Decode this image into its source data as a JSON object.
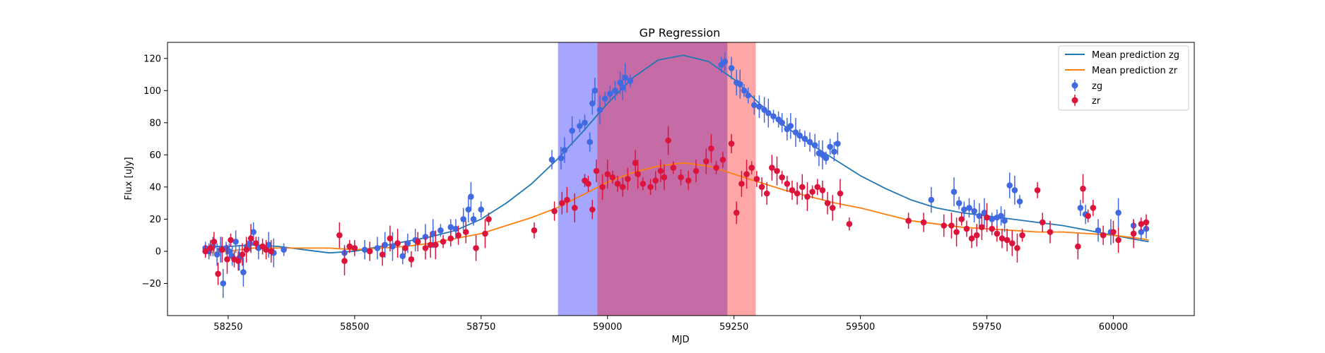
{
  "chart_data": {
    "type": "scatter",
    "title": "GP Regression",
    "xlabel": "MJD",
    "ylabel": "Flux [uJy]",
    "xlim": [
      58130,
      60160
    ],
    "ylim": [
      -40,
      130
    ],
    "xticks": [
      58250,
      58500,
      58750,
      59000,
      59250,
      59500,
      59750,
      60000
    ],
    "yticks": [
      -20,
      0,
      20,
      40,
      60,
      80,
      100,
      120
    ],
    "grid": false,
    "legend_position": "top-right",
    "shaded_regions": [
      {
        "x_start": 58902,
        "x_end": 59237,
        "color": "#0000ff",
        "opacity": 0.35
      },
      {
        "x_start": 58980,
        "x_end": 59293,
        "color": "#ff0000",
        "opacity": 0.35
      }
    ],
    "lines": [
      {
        "name": "Mean prediction zg",
        "color": "#1f77b4",
        "x": [
          58210,
          58250,
          58300,
          58350,
          58400,
          58450,
          58500,
          58550,
          58600,
          58650,
          58700,
          58750,
          58800,
          58850,
          58900,
          58950,
          59000,
          59050,
          59100,
          59150,
          59200,
          59250,
          59300,
          59350,
          59400,
          59450,
          59500,
          59550,
          59600,
          59650,
          59700,
          59750,
          59800,
          59850,
          59900,
          59950,
          60000,
          60050,
          60070
        ],
        "y": [
          3,
          3,
          4,
          3,
          1,
          -1,
          0,
          3,
          6,
          9,
          13,
          20,
          30,
          42,
          57,
          74,
          92,
          108,
          119,
          122,
          118,
          107,
          92,
          78,
          67,
          57,
          47,
          39,
          32,
          27,
          24,
          22,
          20,
          18,
          16,
          13,
          10,
          7,
          6
        ]
      },
      {
        "name": "Mean prediction zr",
        "color": "#ff7f0e",
        "x": [
          58210,
          58250,
          58300,
          58350,
          58400,
          58450,
          58500,
          58550,
          58600,
          58650,
          58700,
          58750,
          58800,
          58850,
          58900,
          58950,
          59000,
          59050,
          59100,
          59150,
          59200,
          59250,
          59300,
          59350,
          59400,
          59450,
          59500,
          59550,
          59600,
          59650,
          59700,
          59750,
          59800,
          59850,
          59900,
          59950,
          60000,
          60050,
          60070
        ],
        "y": [
          -1,
          0,
          2,
          2,
          2,
          2,
          1,
          2,
          3,
          5,
          8,
          11,
          16,
          21,
          27,
          35,
          43,
          49,
          53,
          55,
          53,
          48,
          43,
          38,
          34,
          30,
          27,
          23,
          19,
          17,
          15,
          14,
          13,
          12,
          12,
          11,
          10,
          8,
          7
        ]
      }
    ],
    "series": [
      {
        "name": "zg",
        "color": "#4169e1",
        "x": [
          58205,
          58212,
          58220,
          58228,
          58235,
          58240,
          58246,
          58252,
          58258,
          58265,
          58272,
          58280,
          58287,
          58293,
          58300,
          58310,
          58330,
          58340,
          58360,
          58480,
          58520,
          58545,
          58560,
          58575,
          58585,
          58595,
          58605,
          58620,
          58640,
          58655,
          58670,
          58690,
          58700,
          58715,
          58725,
          58730,
          58735,
          58750,
          58890,
          58908,
          58915,
          58930,
          58945,
          58955,
          58965,
          58970,
          58975,
          58985,
          58995,
          59005,
          59015,
          59025,
          59030,
          59035,
          59045,
          59225,
          59232,
          59245,
          59255,
          59262,
          59270,
          59278,
          59290,
          59300,
          59310,
          59318,
          59328,
          59338,
          59345,
          59355,
          59362,
          59372,
          59380,
          59390,
          59400,
          59410,
          59418,
          59425,
          59432,
          59440,
          59448,
          59455,
          59640,
          59685,
          59695,
          59705,
          59715,
          59725,
          59735,
          59745,
          59760,
          59770,
          59778,
          59785,
          59795,
          59805,
          59815,
          59935,
          59945,
          59970,
          59995,
          60010,
          60040,
          60055,
          60065
        ],
        "y": [
          2,
          0,
          3,
          -2,
          1,
          -20,
          2,
          0,
          -3,
          6,
          -4,
          -13,
          3,
          5,
          12,
          2,
          4,
          -1,
          1,
          -1,
          1,
          2,
          4,
          3,
          5,
          -3,
          5,
          7,
          9,
          11,
          13,
          15,
          14,
          20,
          26,
          34,
          20,
          26,
          57,
          58,
          63,
          75,
          78,
          80,
          68,
          92,
          100,
          88,
          95,
          98,
          100,
          105,
          102,
          108,
          106,
          116,
          118,
          114,
          105,
          104,
          100,
          97,
          91,
          90,
          88,
          86,
          84,
          82,
          80,
          76,
          78,
          74,
          72,
          70,
          68,
          66,
          61,
          60,
          58,
          65,
          62,
          67,
          32,
          37,
          30,
          26,
          27,
          25,
          22,
          24,
          20,
          21,
          22,
          19,
          41,
          38,
          31,
          27,
          23,
          13,
          12,
          24,
          16,
          12,
          14
        ]
      },
      {
        "name": "zr",
        "color": "#dc143c",
        "x": [
          58205,
          58215,
          58222,
          58230,
          58238,
          58248,
          58255,
          58262,
          58270,
          58278,
          58286,
          58295,
          58305,
          58318,
          58325,
          58335,
          58470,
          58480,
          58490,
          58500,
          58530,
          58555,
          58570,
          58585,
          58600,
          58612,
          58625,
          58640,
          58650,
          58660,
          58675,
          58690,
          58705,
          58720,
          58740,
          58758,
          58765,
          58855,
          58895,
          58910,
          58920,
          58935,
          58955,
          58962,
          58970,
          58978,
          58990,
          59000,
          59010,
          59020,
          59030,
          59040,
          59055,
          59060,
          59070,
          59085,
          59095,
          59105,
          59112,
          59120,
          59130,
          59145,
          59160,
          59175,
          59195,
          59205,
          59215,
          59228,
          59245,
          59255,
          59265,
          59275,
          59285,
          59295,
          59305,
          59315,
          59325,
          59335,
          59345,
          59355,
          59365,
          59375,
          59385,
          59395,
          59405,
          59415,
          59425,
          59435,
          59445,
          59460,
          59478,
          59595,
          59625,
          59665,
          59680,
          59690,
          59700,
          59710,
          59720,
          59730,
          59740,
          59750,
          59760,
          59770,
          59780,
          59790,
          59800,
          59810,
          59820,
          59850,
          59860,
          59875,
          59930,
          59940,
          59950,
          59960,
          59980,
          60000,
          60010,
          60040,
          60055,
          60065
        ],
        "y": [
          0,
          2,
          6,
          -14,
          1,
          -5,
          7,
          -5,
          -6,
          -2,
          1,
          8,
          5,
          3,
          1,
          0,
          10,
          -6,
          3,
          2,
          0,
          -2,
          8,
          5,
          2,
          -5,
          6,
          2,
          4,
          4,
          6,
          8,
          10,
          12,
          2,
          11,
          20,
          13,
          25,
          30,
          32,
          27,
          44,
          42,
          26,
          50,
          40,
          48,
          46,
          42,
          40,
          45,
          55,
          48,
          42,
          40,
          44,
          50,
          46,
          69,
          52,
          46,
          44,
          50,
          56,
          64,
          52,
          57,
          67,
          24,
          42,
          48,
          52,
          45,
          40,
          36,
          52,
          50,
          46,
          42,
          38,
          36,
          40,
          34,
          37,
          40,
          38,
          30,
          27,
          36,
          17,
          19,
          18,
          16,
          16,
          12,
          20,
          14,
          8,
          10,
          15,
          21,
          14,
          11,
          8,
          7,
          5,
          2,
          10,
          38,
          18,
          12,
          3,
          39,
          22,
          27,
          10,
          12,
          7,
          11,
          17,
          18
        ]
      }
    ]
  }
}
